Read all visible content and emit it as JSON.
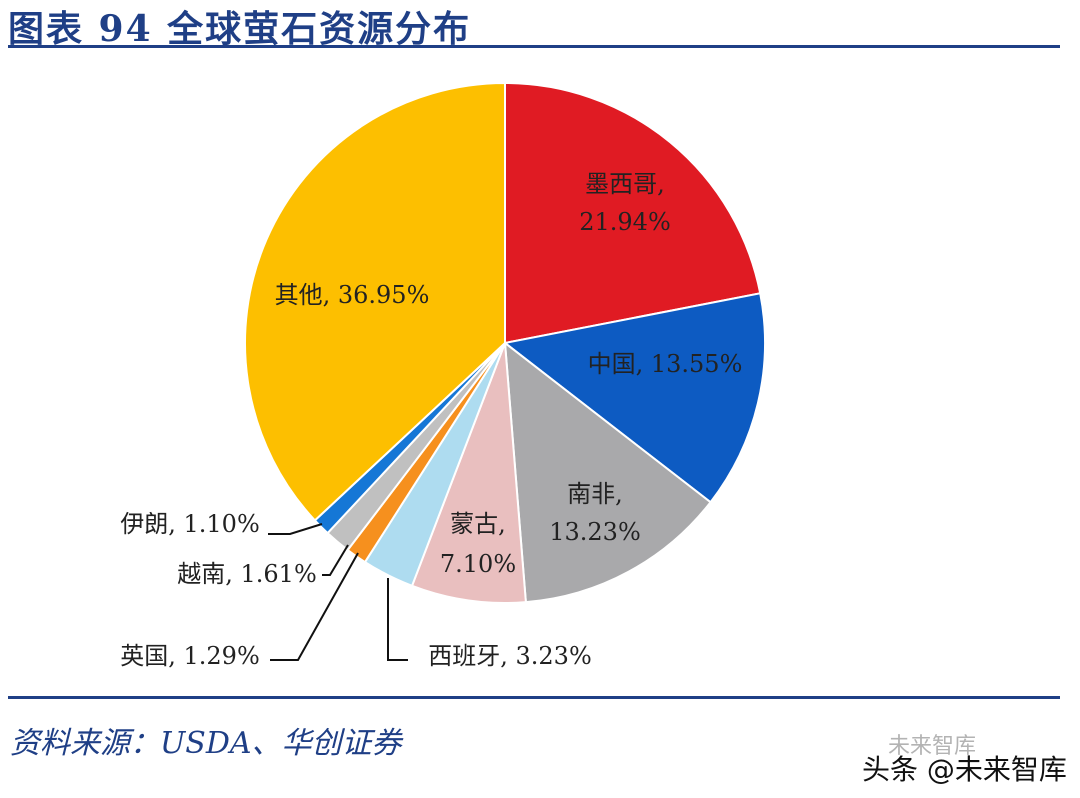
{
  "header": {
    "title": "图表 94  全球萤石资源分布"
  },
  "footer": {
    "source": "资料来源：USDA、华创证券",
    "watermark": "头条 @未来智库",
    "watermark_logo": "未来智库"
  },
  "chart_data": {
    "type": "pie",
    "title": "",
    "slices": [
      {
        "name": "墨西哥",
        "value": 21.94,
        "label": "21.94%",
        "color": "#e01b23"
      },
      {
        "name": "中国",
        "value": 13.55,
        "label": "13.55%",
        "color": "#0d5bc2"
      },
      {
        "name": "南非",
        "value": 13.23,
        "label": "13.23%",
        "color": "#a9a9ab"
      },
      {
        "name": "蒙古",
        "value": 7.1,
        "label": "7.10%",
        "color": "#e9bfbf"
      },
      {
        "name": "西班牙",
        "value": 3.23,
        "label": "3.23%",
        "color": "#aedcf0"
      },
      {
        "name": "英国",
        "value": 1.29,
        "label": "1.29%",
        "color": "#f6901e"
      },
      {
        "name": "越南",
        "value": 1.61,
        "label": "1.61%",
        "color": "#c0c0c0"
      },
      {
        "name": "伊朗",
        "value": 1.1,
        "label": "1.10%",
        "color": "#1577d6"
      },
      {
        "name": "其他",
        "value": 36.95,
        "label": "36.95%",
        "color": "#fdbf00"
      }
    ]
  }
}
